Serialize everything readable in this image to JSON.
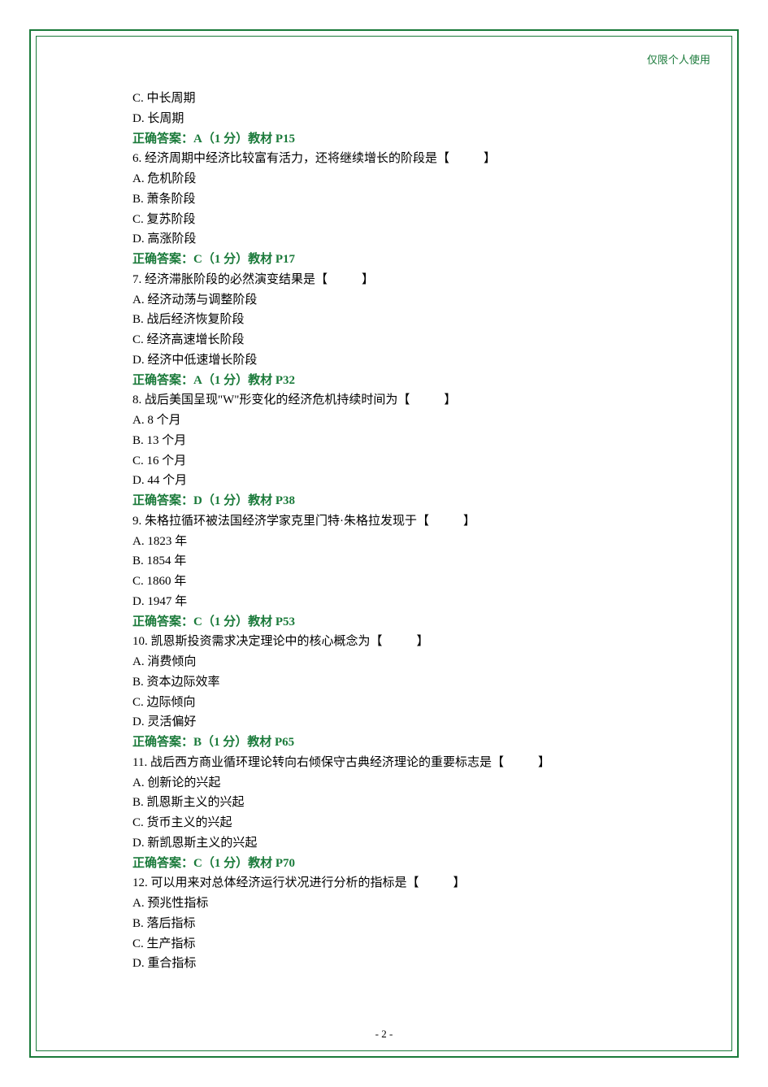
{
  "watermark": "仅限个人使用",
  "page_number": "- 2 -",
  "colors": {
    "border": "#1a7a3a",
    "answer_text": "#1a7a3a",
    "body_text": "#000000",
    "background": "#ffffff"
  },
  "typography": {
    "body_font": "SimSun",
    "body_size_pt": 11,
    "line_height": 1.65,
    "answer_weight": "bold"
  },
  "leading_options": [
    {
      "letter": "C",
      "text": "中长周期"
    },
    {
      "letter": "D",
      "text": "长周期"
    }
  ],
  "leading_answer": "正确答案：A（1 分）教材 P15",
  "questions": [
    {
      "number": "6",
      "stem": "经济周期中经济比较富有活力，还将继续增长的阶段是【",
      "stem_tail": "】",
      "options": [
        {
          "letter": "A",
          "text": "危机阶段"
        },
        {
          "letter": "B",
          "text": "萧条阶段"
        },
        {
          "letter": "C",
          "text": "复苏阶段"
        },
        {
          "letter": "D",
          "text": "高涨阶段"
        }
      ],
      "answer": "正确答案：C（1 分）教材 P17"
    },
    {
      "number": "7",
      "stem": "经济滞胀阶段的必然演变结果是【",
      "stem_tail": "】",
      "options": [
        {
          "letter": "A",
          "text": "经济动荡与调整阶段"
        },
        {
          "letter": "B",
          "text": "战后经济恢复阶段"
        },
        {
          "letter": "C",
          "text": "经济高速增长阶段"
        },
        {
          "letter": "D",
          "text": "经济中低速增长阶段"
        }
      ],
      "answer": "正确答案：A（1 分）教材 P32"
    },
    {
      "number": "8",
      "stem": "战后美国呈现\"W\"形变化的经济危机持续时间为【",
      "stem_tail": "】",
      "options": [
        {
          "letter": "A",
          "text": "8 个月"
        },
        {
          "letter": "B",
          "text": "13 个月"
        },
        {
          "letter": "C",
          "text": "16 个月"
        },
        {
          "letter": "D",
          "text": "44 个月"
        }
      ],
      "answer": "正确答案：D（1 分）教材 P38"
    },
    {
      "number": "9",
      "stem": "朱格拉循环被法国经济学家克里门特·朱格拉发现于【",
      "stem_tail": "】",
      "options": [
        {
          "letter": "A",
          "text": "1823 年"
        },
        {
          "letter": "B",
          "text": "1854 年"
        },
        {
          "letter": "C",
          "text": "1860 年"
        },
        {
          "letter": "D",
          "text": "1947 年"
        }
      ],
      "answer": "正确答案：C（1 分）教材 P53"
    },
    {
      "number": "10",
      "stem": "凯恩斯投资需求决定理论中的核心概念为【",
      "stem_tail": "】",
      "options": [
        {
          "letter": "A",
          "text": "消费倾向"
        },
        {
          "letter": "B",
          "text": "资本边际效率"
        },
        {
          "letter": "C",
          "text": "边际倾向"
        },
        {
          "letter": "D",
          "text": "灵活偏好"
        }
      ],
      "answer": "正确答案：B（1 分）教材 P65"
    },
    {
      "number": "11",
      "stem": "战后西方商业循环理论转向右倾保守古典经济理论的重要标志是【",
      "stem_tail": "】",
      "options": [
        {
          "letter": "A",
          "text": "创新论的兴起"
        },
        {
          "letter": "B",
          "text": "凯恩斯主义的兴起"
        },
        {
          "letter": "C",
          "text": "货币主义的兴起"
        },
        {
          "letter": "D",
          "text": "新凯恩斯主义的兴起"
        }
      ],
      "answer": "正确答案：C（1 分）教材 P70"
    },
    {
      "number": "12",
      "stem": "可以用来对总体经济运行状况进行分析的指标是【",
      "stem_tail": "】",
      "options": [
        {
          "letter": "A",
          "text": "预兆性指标"
        },
        {
          "letter": "B",
          "text": "落后指标"
        },
        {
          "letter": "C",
          "text": "生产指标"
        },
        {
          "letter": "D",
          "text": "重合指标"
        }
      ],
      "answer": null
    }
  ]
}
